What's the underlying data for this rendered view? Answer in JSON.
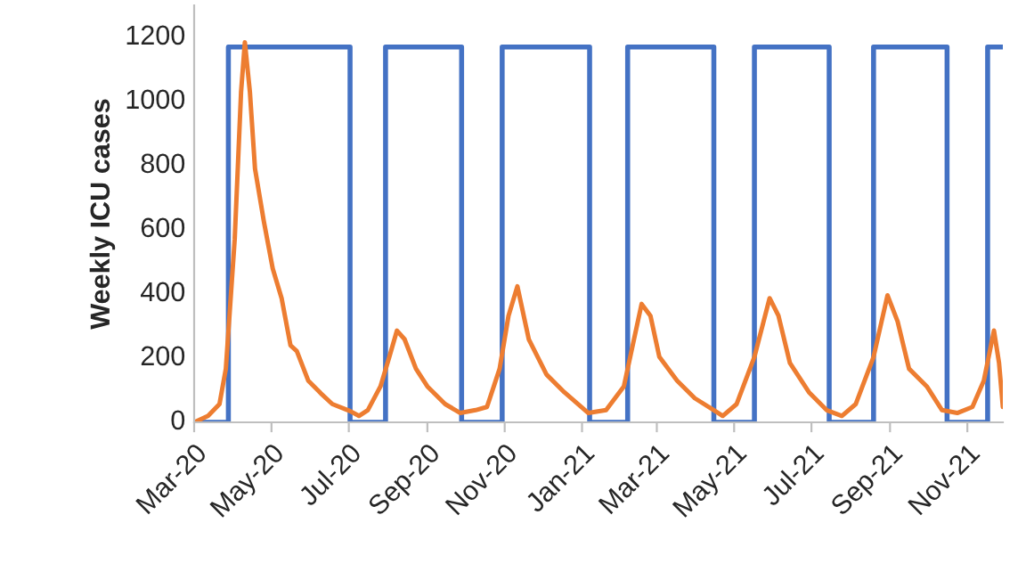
{
  "chart_data": {
    "type": "line",
    "ylabel": "Weekly ICU cases",
    "series": [
      {
        "color": "#4472c4",
        "x": [
          "2020-03-01",
          "2020-03-28",
          "2020-03-28",
          "2020-07-02",
          "2020-07-02",
          "2020-07-30",
          "2020-07-30",
          "2020-09-28",
          "2020-09-28",
          "2020-10-30",
          "2020-10-30",
          "2021-01-07",
          "2021-01-07",
          "2021-02-06",
          "2021-02-06",
          "2021-04-15",
          "2021-04-15",
          "2021-05-17",
          "2021-05-17",
          "2021-07-15",
          "2021-07-15",
          "2021-08-19",
          "2021-08-19",
          "2021-10-16",
          "2021-10-16",
          "2021-11-17",
          "2021-11-17",
          "2021-11-29"
        ],
        "values": [
          0,
          0,
          1170,
          1170,
          0,
          0,
          1170,
          1170,
          0,
          0,
          1170,
          1170,
          0,
          0,
          1170,
          1170,
          0,
          0,
          1170,
          1170,
          0,
          0,
          1170,
          1170,
          0,
          0,
          1170,
          1170
        ]
      },
      {
        "color": "#ed7d31",
        "x": [
          "2020-03-01",
          "2020-03-12",
          "2020-03-21",
          "2020-03-26",
          "2020-04-02",
          "2020-04-07",
          "2020-04-10",
          "2020-04-14",
          "2020-04-18",
          "2020-04-25",
          "2020-05-02",
          "2020-05-09",
          "2020-05-16",
          "2020-05-21",
          "2020-05-30",
          "2020-06-09",
          "2020-06-18",
          "2020-07-02",
          "2020-07-09",
          "2020-07-16",
          "2020-07-26",
          "2020-08-02",
          "2020-08-08",
          "2020-08-14",
          "2020-08-23",
          "2020-09-01",
          "2020-09-15",
          "2020-09-27",
          "2020-10-09",
          "2020-10-18",
          "2020-10-28",
          "2020-11-04",
          "2020-11-11",
          "2020-11-20",
          "2020-12-04",
          "2020-12-18",
          "2021-01-06",
          "2021-01-20",
          "2021-02-03",
          "2021-02-17",
          "2021-02-24",
          "2021-03-03",
          "2021-03-17",
          "2021-03-31",
          "2021-04-15",
          "2021-04-22",
          "2021-05-03",
          "2021-05-17",
          "2021-05-29",
          "2021-06-05",
          "2021-06-14",
          "2021-06-29",
          "2021-07-13",
          "2021-07-25",
          "2021-08-05",
          "2021-08-19",
          "2021-08-30",
          "2021-09-07",
          "2021-09-16",
          "2021-09-30",
          "2021-10-12",
          "2021-10-24",
          "2021-11-05",
          "2021-11-14",
          "2021-11-22",
          "2021-11-26",
          "2021-11-29"
        ],
        "values": [
          0,
          20,
          57,
          167,
          571,
          1029,
          1185,
          1029,
          791,
          626,
          479,
          387,
          240,
          222,
          130,
          90,
          57,
          35,
          20,
          38,
          112,
          204,
          286,
          259,
          167,
          112,
          57,
          29,
          38,
          48,
          167,
          332,
          424,
          259,
          149,
          94,
          29,
          38,
          112,
          369,
          332,
          204,
          130,
          75,
          38,
          20,
          57,
          204,
          387,
          332,
          185,
          94,
          38,
          20,
          57,
          204,
          396,
          314,
          167,
          112,
          38,
          29,
          48,
          130,
          286,
          185,
          48
        ]
      }
    ],
    "xlim": [
      "2020-03-01",
      "2021-11-29"
    ],
    "xticks": [
      {
        "value": "2020-03-01",
        "label": "Mar-20"
      },
      {
        "value": "2020-05-01",
        "label": "May-20"
      },
      {
        "value": "2020-07-01",
        "label": "Jul-20"
      },
      {
        "value": "2020-09-01",
        "label": "Sep-20"
      },
      {
        "value": "2020-11-01",
        "label": "Nov-20"
      },
      {
        "value": "2021-01-01",
        "label": "Jan-21"
      },
      {
        "value": "2021-03-01",
        "label": "Mar-21"
      },
      {
        "value": "2021-05-01",
        "label": "May-21"
      },
      {
        "value": "2021-07-01",
        "label": "Jul-21"
      },
      {
        "value": "2021-09-01",
        "label": "Sep-21"
      },
      {
        "value": "2021-11-01",
        "label": "Nov-21"
      }
    ],
    "ylim": [
      0,
      1300
    ],
    "yticks": [
      0,
      200,
      400,
      600,
      800,
      1000,
      1200
    ],
    "grid": false,
    "marker": "none",
    "line_style": "solid"
  }
}
